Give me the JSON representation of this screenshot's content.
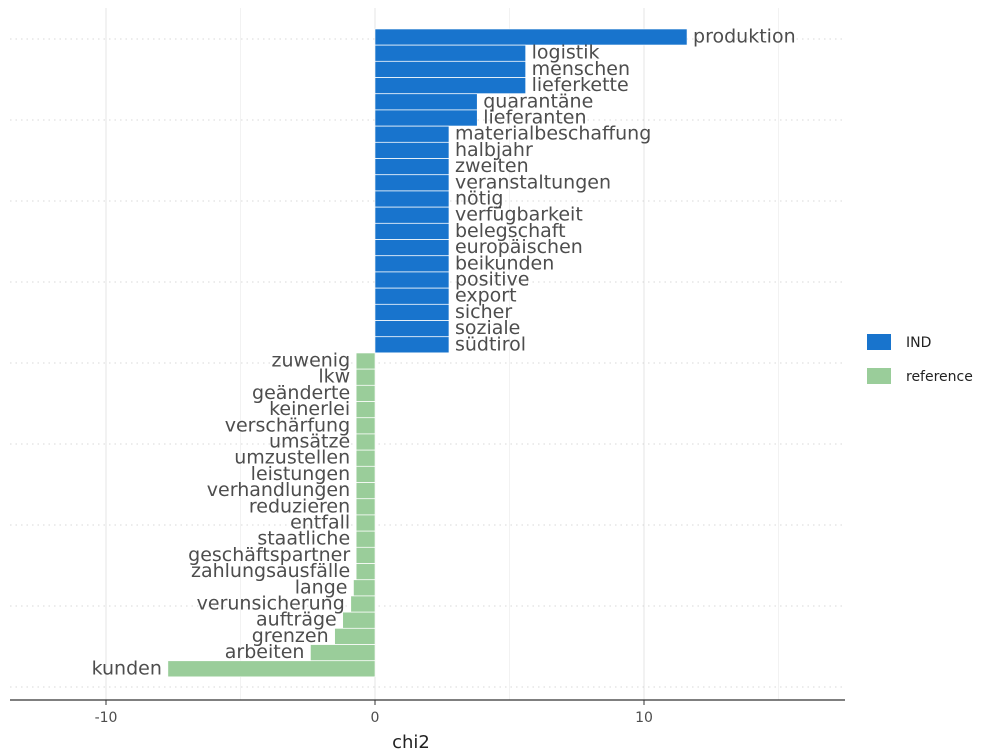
{
  "chart_data": {
    "type": "bar",
    "orientation": "horizontal",
    "title": "",
    "xlabel": "chi2",
    "ylabel": "",
    "xlim": [
      -13.5,
      17.5
    ],
    "xticks": [
      -10,
      0,
      10
    ],
    "grid": true,
    "legend_position": "right",
    "series": [
      {
        "name": "IND",
        "color": "#1874cd"
      },
      {
        "name": "reference",
        "color": "#9acd9a"
      }
    ],
    "bars": [
      {
        "label": "produktion",
        "value": 11.6,
        "group": "IND"
      },
      {
        "label": "logistik",
        "value": 5.6,
        "group": "IND"
      },
      {
        "label": "menschen",
        "value": 5.6,
        "group": "IND"
      },
      {
        "label": "lieferkette",
        "value": 5.6,
        "group": "IND"
      },
      {
        "label": "quarantäne",
        "value": 3.8,
        "group": "IND"
      },
      {
        "label": "lieferanten",
        "value": 3.8,
        "group": "IND"
      },
      {
        "label": "materialbeschaffung",
        "value": 2.75,
        "group": "IND"
      },
      {
        "label": "halbjahr",
        "value": 2.75,
        "group": "IND"
      },
      {
        "label": "zweiten",
        "value": 2.75,
        "group": "IND"
      },
      {
        "label": "veranstaltungen",
        "value": 2.75,
        "group": "IND"
      },
      {
        "label": "nötig",
        "value": 2.75,
        "group": "IND"
      },
      {
        "label": "verfügbarkeit",
        "value": 2.75,
        "group": "IND"
      },
      {
        "label": "belegschaft",
        "value": 2.75,
        "group": "IND"
      },
      {
        "label": "europäischen",
        "value": 2.75,
        "group": "IND"
      },
      {
        "label": "beikunden",
        "value": 2.75,
        "group": "IND"
      },
      {
        "label": "positive",
        "value": 2.75,
        "group": "IND"
      },
      {
        "label": "export",
        "value": 2.75,
        "group": "IND"
      },
      {
        "label": "sicher",
        "value": 2.75,
        "group": "IND"
      },
      {
        "label": "soziale",
        "value": 2.75,
        "group": "IND"
      },
      {
        "label": "südtirol",
        "value": 2.75,
        "group": "IND"
      },
      {
        "label": "zuwenig",
        "value": -0.7,
        "group": "reference"
      },
      {
        "label": "lkw",
        "value": -0.7,
        "group": "reference"
      },
      {
        "label": "geänderte",
        "value": -0.7,
        "group": "reference"
      },
      {
        "label": "keinerlei",
        "value": -0.7,
        "group": "reference"
      },
      {
        "label": "verschärfung",
        "value": -0.7,
        "group": "reference"
      },
      {
        "label": "umsätze",
        "value": -0.7,
        "group": "reference"
      },
      {
        "label": "umzustellen",
        "value": -0.7,
        "group": "reference"
      },
      {
        "label": "leistungen",
        "value": -0.7,
        "group": "reference"
      },
      {
        "label": "verhandlungen",
        "value": -0.7,
        "group": "reference"
      },
      {
        "label": "reduzieren",
        "value": -0.7,
        "group": "reference"
      },
      {
        "label": "entfall",
        "value": -0.7,
        "group": "reference"
      },
      {
        "label": "staatliche",
        "value": -0.7,
        "group": "reference"
      },
      {
        "label": "geschäftspartner",
        "value": -0.7,
        "group": "reference"
      },
      {
        "label": "zahlungsausfälle",
        "value": -0.7,
        "group": "reference"
      },
      {
        "label": "lange",
        "value": -0.8,
        "group": "reference"
      },
      {
        "label": "verunsicherung",
        "value": -0.9,
        "group": "reference"
      },
      {
        "label": "aufträge",
        "value": -1.2,
        "group": "reference"
      },
      {
        "label": "grenzen",
        "value": -1.5,
        "group": "reference"
      },
      {
        "label": "arbeiten",
        "value": -2.4,
        "group": "reference"
      },
      {
        "label": "kunden",
        "value": -7.7,
        "group": "reference"
      }
    ]
  }
}
